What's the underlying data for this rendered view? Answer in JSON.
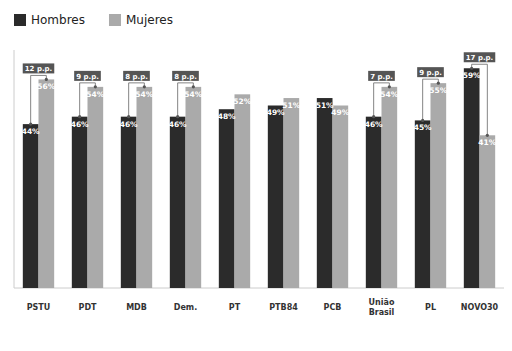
{
  "chart_data": {
    "type": "bar",
    "categories": [
      "PSTU",
      "PDT",
      "MDB",
      "Dem.",
      "PT",
      "PTB84",
      "PCB",
      "União\nBrasil",
      "PL",
      "NOVO30"
    ],
    "series": [
      {
        "name": "Hombres",
        "color": "#2b2b2b",
        "values": [
          44,
          46,
          46,
          46,
          48,
          49,
          51,
          46,
          45,
          59
        ],
        "value_labels": [
          "44%",
          "46%",
          "46%",
          "46%",
          "48%",
          "49%",
          "51%",
          "46%",
          "45%",
          "59%"
        ]
      },
      {
        "name": "Mujeres",
        "color": "#aaaaaa",
        "values": [
          56,
          54,
          54,
          54,
          52,
          51,
          49,
          54,
          55,
          41
        ],
        "value_labels": [
          "56%",
          "54%",
          "54%",
          "54%",
          "52%",
          "51%",
          "49%",
          "54%",
          "55%",
          "41%"
        ]
      }
    ],
    "ylim": [
      0,
      63.9
    ],
    "tick_labels": false,
    "grid": false,
    "legend": "top left",
    "data_labels": true,
    "annotations": [
      {
        "text": "12 p.p.",
        "category": "PSTU"
      },
      {
        "text": "9 p.p.",
        "category": "PDT"
      },
      {
        "text": "8 p.p.",
        "category": "MDB"
      },
      {
        "text": "8 p.p.",
        "category": "Dem."
      },
      {
        "text": "7 p.p.",
        "category": "União\nBrasil"
      },
      {
        "text": "9 p.p.",
        "category": "PL"
      },
      {
        "text": "17 p.p.",
        "category": "NOVO30"
      }
    ]
  }
}
